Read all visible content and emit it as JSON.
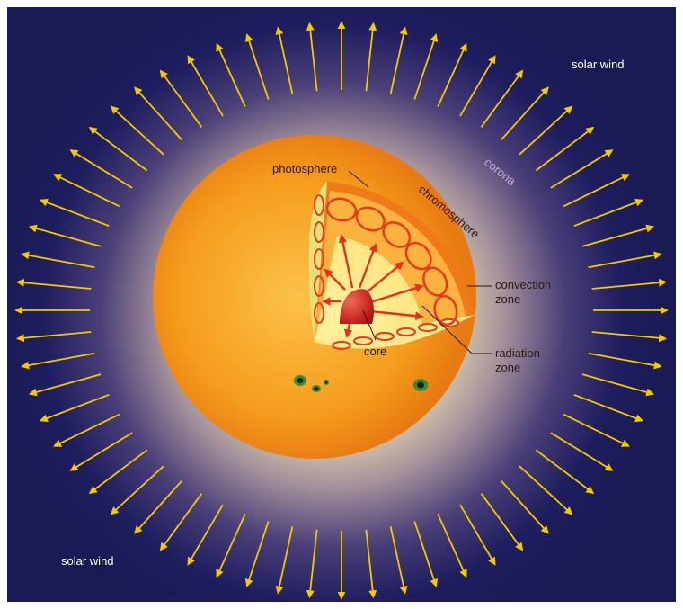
{
  "labels": {
    "solar_wind_top": "solar wind",
    "solar_wind_bottom": "solar wind",
    "corona": "corona",
    "photosphere": "photosphere",
    "chromosphere": "chromosphere",
    "convection_line1": "convection",
    "convection_line2": "zone",
    "radiation_line1": "radiation",
    "radiation_line2": "zone",
    "core": "core"
  },
  "colors": {
    "space": "#1d1d5c",
    "corona_glow": "#f4e6b4",
    "sun_orange": "#f49a1c",
    "sun_light": "#fbd05a",
    "radiation_zone": "#fff7a8",
    "convection_cells": "#e53b1c",
    "core": "#c0201a",
    "wind_arrows": "#f6c800",
    "corona_label": "#c8a8d8"
  },
  "icons": {
    "solar_wind_arrow": "arrow-outward-icon",
    "sunspot": "sunspot-icon"
  }
}
